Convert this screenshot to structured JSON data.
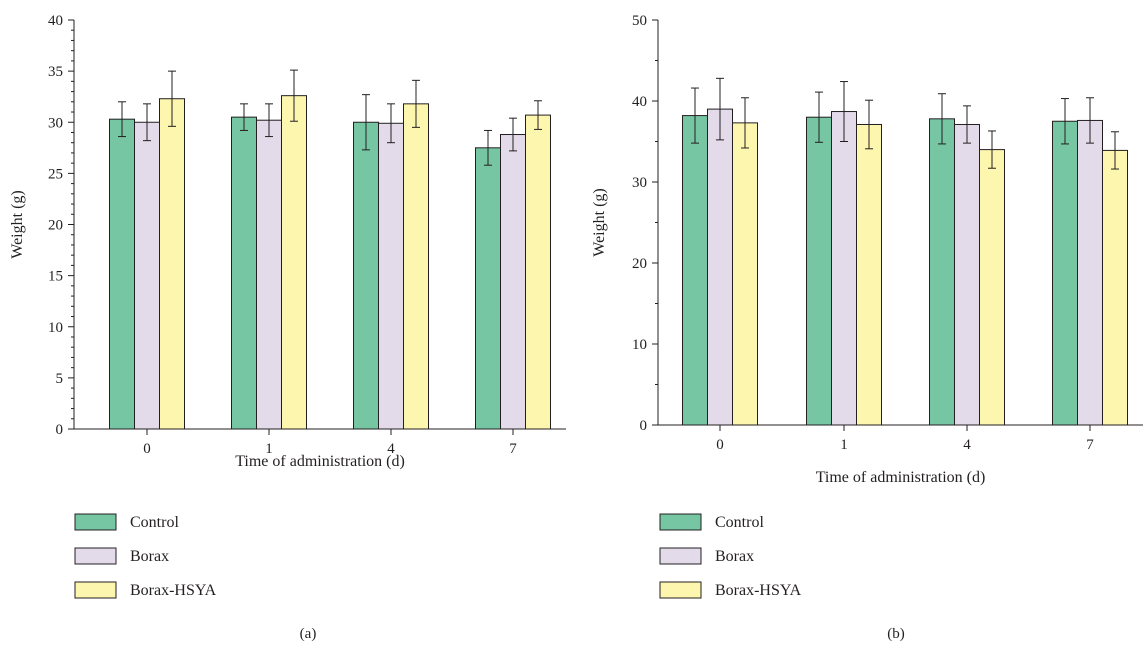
{
  "colors": {
    "control": "#76c6a4",
    "borax": "#e3dbea",
    "borax_hsya": "#fdf6ae",
    "stroke": "#231f20"
  },
  "chart_data": [
    {
      "type": "bar",
      "panel_label": "(a)",
      "title": "",
      "xlabel": "Time of administration (d)",
      "ylabel": "Weight (g)",
      "ylim": [
        0,
        40
      ],
      "yticks": [
        0,
        5,
        10,
        15,
        20,
        25,
        30,
        35,
        40
      ],
      "categories": [
        "0",
        "1",
        "4",
        "7"
      ],
      "legend_position": "below",
      "series": [
        {
          "name": "Control",
          "color_key": "control",
          "values": [
            30.3,
            30.5,
            30.0,
            27.5
          ],
          "errors": [
            1.7,
            1.3,
            2.7,
            1.7
          ]
        },
        {
          "name": "Borax",
          "color_key": "borax",
          "values": [
            30.0,
            30.2,
            29.9,
            28.8
          ],
          "errors": [
            1.8,
            1.6,
            1.9,
            1.6
          ]
        },
        {
          "name": "Borax-HSYA",
          "color_key": "borax_hsya",
          "values": [
            32.3,
            32.6,
            31.8,
            30.7
          ],
          "errors": [
            2.7,
            2.5,
            2.3,
            1.4
          ]
        }
      ]
    },
    {
      "type": "bar",
      "panel_label": "(b)",
      "title": "",
      "xlabel": "Time of administration (d)",
      "ylabel": "Weight (g)",
      "ylim": [
        0,
        50
      ],
      "yticks": [
        0,
        10,
        20,
        30,
        40,
        50
      ],
      "categories": [
        "0",
        "1",
        "4",
        "7"
      ],
      "legend_position": "below",
      "series": [
        {
          "name": "Control",
          "color_key": "control",
          "values": [
            38.2,
            38.0,
            37.8,
            37.5
          ],
          "errors": [
            3.4,
            3.1,
            3.1,
            2.8
          ]
        },
        {
          "name": "Borax",
          "color_key": "borax",
          "values": [
            39.0,
            38.7,
            37.1,
            37.6
          ],
          "errors": [
            3.8,
            3.7,
            2.3,
            2.8
          ]
        },
        {
          "name": "Borax-HSYA",
          "color_key": "borax_hsya",
          "values": [
            37.3,
            37.1,
            34.0,
            33.9
          ],
          "errors": [
            3.1,
            3.0,
            2.3,
            2.3
          ]
        }
      ]
    }
  ]
}
